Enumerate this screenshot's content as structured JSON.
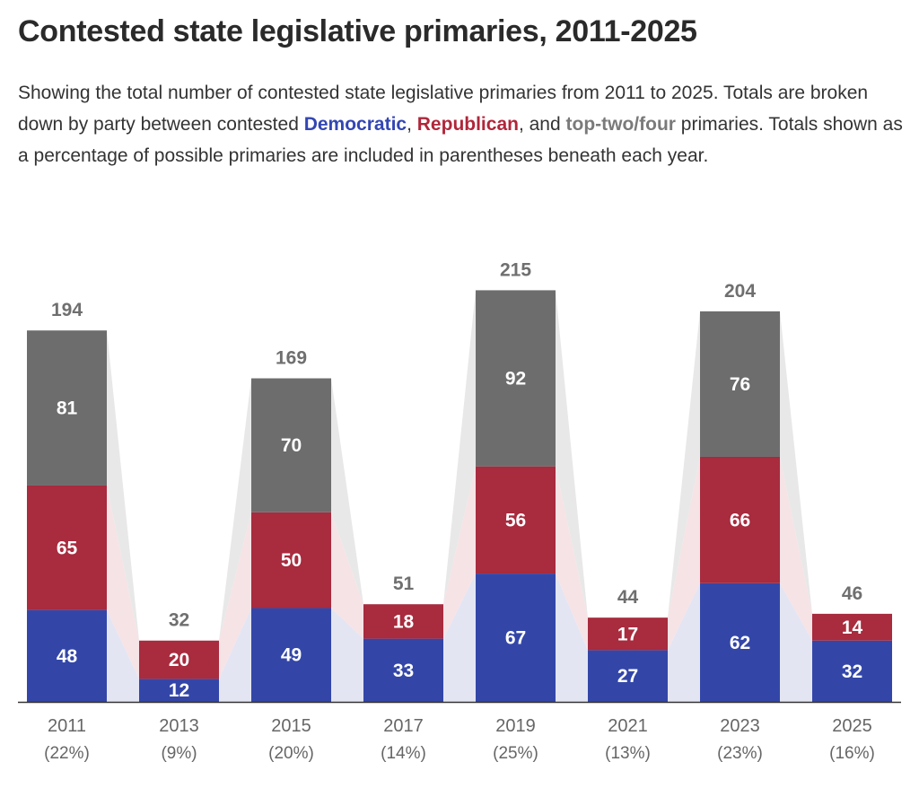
{
  "title": "Contested state legislative primaries, 2011-2025",
  "subtitle": {
    "part1": "Showing the total number of contested state legislative primaries from 2011 to 2025. Totals are broken down by party between contested ",
    "dem": "Democratic",
    "sep1": ", ",
    "rep": "Republican",
    "sep2": ", and ",
    "top": "top-two/four",
    "part2": " primaries. Totals shown as a percentage of possible primaries are included in parentheses beneath each year."
  },
  "colors": {
    "democratic": "#3346a8",
    "republican": "#a82b3e",
    "toptwo": "#6d6d6d",
    "dem_band": "#e3e5f3",
    "rep_band": "#f6e3e6",
    "top_band": "#e8e8e8",
    "axis": "#333333"
  },
  "chart_data": {
    "type": "bar",
    "stacked": true,
    "categories": [
      "2011",
      "2013",
      "2015",
      "2017",
      "2019",
      "2021",
      "2023",
      "2025"
    ],
    "percent_labels": [
      "(22%)",
      "(9%)",
      "(20%)",
      "(14%)",
      "(25%)",
      "(13%)",
      "(23%)",
      "(16%)"
    ],
    "series": [
      {
        "name": "Democratic",
        "values": [
          48,
          12,
          49,
          33,
          67,
          27,
          62,
          32
        ]
      },
      {
        "name": "Republican",
        "values": [
          65,
          20,
          50,
          18,
          56,
          17,
          66,
          14
        ]
      },
      {
        "name": "top-two/four",
        "values": [
          81,
          0,
          70,
          0,
          92,
          0,
          76,
          0
        ]
      }
    ],
    "totals": [
      194,
      32,
      169,
      51,
      215,
      44,
      204,
      46
    ],
    "ylim": [
      0,
      215
    ],
    "grid": false
  }
}
